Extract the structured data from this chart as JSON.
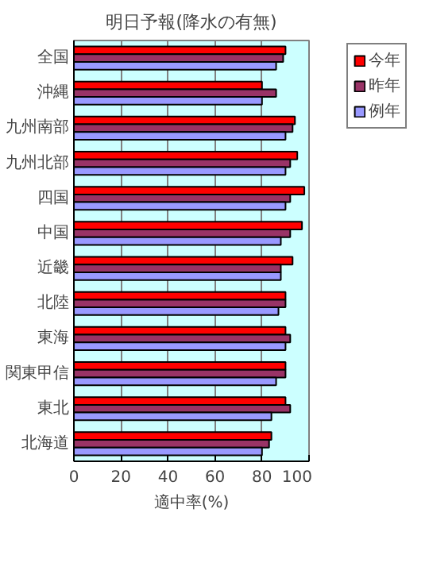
{
  "chart_data": {
    "type": "bar",
    "orientation": "horizontal",
    "title": "明日予報(降水の有無)",
    "xlabel": "適中率(%)",
    "categories": [
      "全国",
      "沖縄",
      "九州南部",
      "九州北部",
      "四国",
      "中国",
      "近畿",
      "北陸",
      "東海",
      "関東甲信",
      "東北",
      "北海道"
    ],
    "series": [
      {
        "name": "今年",
        "color": "#ff0000",
        "values": [
          90,
          80,
          94,
          95,
          98,
          97,
          93,
          90,
          90,
          90,
          90,
          84
        ]
      },
      {
        "name": "昨年",
        "color": "#993366",
        "values": [
          89,
          86,
          93,
          92,
          92,
          92,
          88,
          90,
          92,
          90,
          92,
          83
        ]
      },
      {
        "name": "例年",
        "color": "#9999ff",
        "values": [
          86,
          80,
          90,
          90,
          90,
          88,
          88,
          87,
          90,
          86,
          84,
          80
        ]
      }
    ],
    "xlim": [
      0,
      100
    ],
    "xticks": [
      0,
      20,
      40,
      60,
      80,
      100
    ],
    "grid": "x",
    "legend": "top right"
  }
}
